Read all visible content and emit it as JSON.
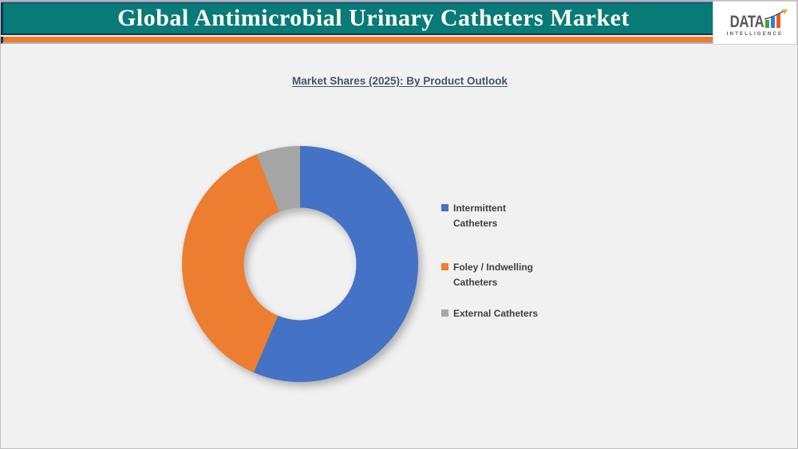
{
  "header": {
    "title": "Global Antimicrobial Urinary Catheters Market"
  },
  "logo": {
    "brand": "DATA",
    "subtitle": "INTELLIGENCE",
    "bar_colors": [
      "#3fa23c",
      "#2f7ed8",
      "#f05a22"
    ],
    "arrow_color": "#58595b",
    "arrowhead_color": "#f5a11c"
  },
  "theme": {
    "teal": "#087a77",
    "navy": "#16334f",
    "accent_orange": "#ee7c2b",
    "body_bg": "#f1f1f1",
    "subtitle_color": "#44546a"
  },
  "chart_data": {
    "type": "pie",
    "donut": true,
    "title": "Market Shares (2025): By Product Outlook",
    "labels": [
      "Intermittent Catheters",
      "Foley / Indwelling Catheters",
      "External Catheters"
    ],
    "values": [
      56.4,
      37.6,
      6.0
    ],
    "unit": "percent_estimated",
    "colors": [
      "#4472c4",
      "#ed7d31",
      "#a6a6a6"
    ],
    "hole_ratio": 0.476,
    "start_angle_deg": 0,
    "direction": "clockwise",
    "legend_position": "right",
    "data_labels_shown": false
  }
}
